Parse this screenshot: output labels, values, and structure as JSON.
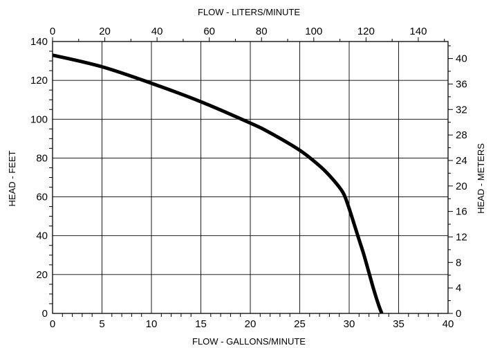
{
  "chart_data": {
    "type": "line",
    "title": "",
    "xlabel": "FLOW - GALLONS/MINUTE",
    "x2label": "FLOW - LITERS/MINUTE",
    "ylabel": "HEAD - FEET",
    "y2label": "HEAD - METERS",
    "xlim": [
      0,
      40
    ],
    "ylim": [
      0,
      140
    ],
    "x2lim": [
      0,
      151.4
    ],
    "y2lim": [
      0,
      42.67
    ],
    "xticks": [
      "0",
      "5",
      "10",
      "15",
      "20",
      "25",
      "30",
      "35",
      "40"
    ],
    "yticks": [
      "0",
      "20",
      "40",
      "60",
      "80",
      "100",
      "120",
      "140"
    ],
    "x2ticks": [
      "0",
      "20",
      "40",
      "60",
      "80",
      "100",
      "120",
      "140"
    ],
    "y2ticks": [
      "0",
      "4",
      "8",
      "12",
      "16",
      "20",
      "24",
      "28",
      "32",
      "36",
      "40"
    ],
    "grid": true,
    "series": [
      {
        "name": "",
        "color": "#000000",
        "x": [
          0,
          5,
          10,
          15,
          20,
          22,
          25,
          27,
          28,
          29,
          29.5,
          30,
          30.5,
          31,
          31.5,
          32,
          32.5,
          33,
          33.3
        ],
        "y": [
          133,
          127,
          118.5,
          109,
          98,
          93,
          84,
          76,
          71,
          65,
          61,
          54,
          46,
          38,
          30,
          21,
          12,
          4,
          0
        ]
      }
    ]
  }
}
